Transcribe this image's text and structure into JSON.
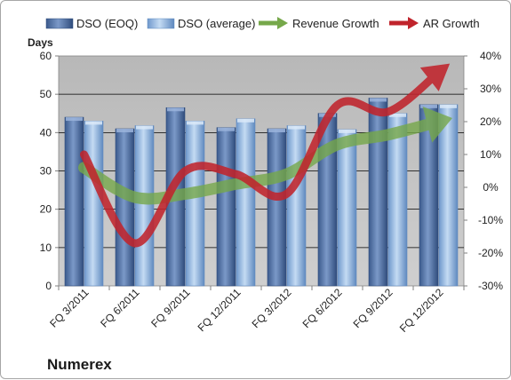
{
  "chart_data": {
    "type": "bar",
    "categories": [
      "FQ 3/2011",
      "FQ 6/2011",
      "FQ 9/2011",
      "FQ 12/2011",
      "FQ 3/2012",
      "FQ 6/2012",
      "FQ 9/2012",
      "FQ 12/2012"
    ],
    "series": [
      {
        "name": "DSO (EOQ)",
        "axis": "left",
        "kind": "bar",
        "color": "#4f6fa1",
        "values": [
          44.0,
          41.0,
          46.5,
          41.3,
          41.0,
          45.0,
          49.0,
          47.3
        ]
      },
      {
        "name": "DSO (average)",
        "axis": "left",
        "kind": "bar",
        "color": "#8eb4e3",
        "values": [
          43.0,
          41.8,
          43.0,
          43.6,
          41.8,
          40.8,
          45.0,
          47.3
        ]
      },
      {
        "name": "Revenue Growth",
        "axis": "right",
        "kind": "line",
        "color": "#76a84a",
        "values": [
          0.06,
          -0.03,
          -0.02,
          0.01,
          0.04,
          0.13,
          0.16,
          0.2
        ]
      },
      {
        "name": "AR Growth",
        "axis": "right",
        "kind": "line",
        "color": "#c0242c",
        "values": [
          0.1,
          -0.17,
          0.05,
          0.04,
          -0.02,
          0.25,
          0.23,
          0.35
        ]
      }
    ],
    "ylabel": "Days",
    "ylim": [
      0,
      60
    ],
    "yticks": [
      0,
      10,
      20,
      30,
      40,
      50,
      60
    ],
    "y2lim": [
      -0.3,
      0.4
    ],
    "y2ticks": [
      "-30%",
      "-20%",
      "-10%",
      "0%",
      "10%",
      "20%",
      "30%",
      "40%"
    ],
    "legend": "top",
    "grid": true,
    "title": ""
  },
  "footer": {
    "company": "Numerex"
  },
  "colors": {
    "plot_background": "#c0c0c0",
    "gridline": "#000000",
    "bar_eoq": "#4f6fa1",
    "bar_avg": "#8eb4e3",
    "revenue_line": "#76a84a",
    "ar_line": "#c0242c"
  }
}
